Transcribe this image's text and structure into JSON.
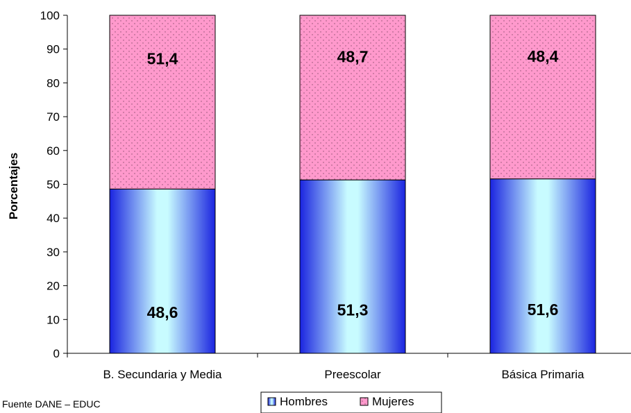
{
  "chart_data": {
    "type": "bar",
    "stacked": true,
    "categories": [
      "B. Secundaria y Media",
      "Preescolar",
      "Básica Primaria"
    ],
    "series": [
      {
        "name": "Hombres",
        "values": [
          48.6,
          51.3,
          51.6
        ],
        "labels": [
          "48,6",
          "51,3",
          "51,6"
        ],
        "color": "#1a24e0",
        "pattern": "horizontal-gradient"
      },
      {
        "name": "Mujeres",
        "values": [
          51.4,
          48.7,
          48.4
        ],
        "labels": [
          "51,4",
          "48,7",
          "48,4"
        ],
        "color": "#ff99cc",
        "pattern": "dots"
      }
    ],
    "ylabel": "Porcentajes",
    "xlabel": "",
    "ylim": [
      0,
      100
    ],
    "yticks": [
      "0",
      "10",
      "20",
      "30",
      "40",
      "50",
      "60",
      "70",
      "80",
      "90",
      "100"
    ],
    "grid": false,
    "legend": "bottom-center",
    "source": "Fuente DANE – EDUC"
  }
}
